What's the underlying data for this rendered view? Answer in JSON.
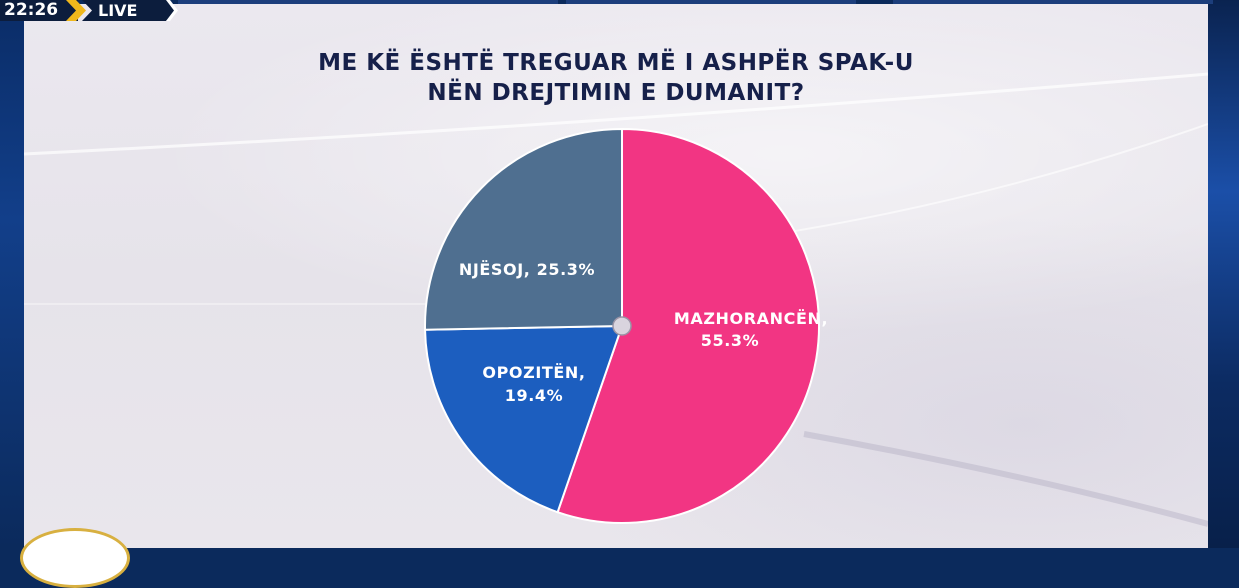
{
  "broadcast": {
    "clock": "22:26",
    "live_label": "LIVE"
  },
  "chart_data": {
    "type": "pie",
    "title_line1": "ME KË ËSHTË TREGUAR MË I ASHPËR SPAK-U",
    "title_line2": "NËN DREJTIMIN E DUMANIT?",
    "slices": [
      {
        "label": "MAZHORANCËN,",
        "value": 55.3,
        "value_text": "55.3%",
        "color": "#f23583"
      },
      {
        "label": "OPOZITËN,",
        "value": 19.4,
        "value_text": "19.4%",
        "color": "#1c5ebf"
      },
      {
        "label": "NJËSOJ, 25.3%",
        "value": 25.3,
        "value_text": "",
        "color": "#4f6f90"
      }
    ],
    "center_dot_color": "#d9d4de"
  }
}
